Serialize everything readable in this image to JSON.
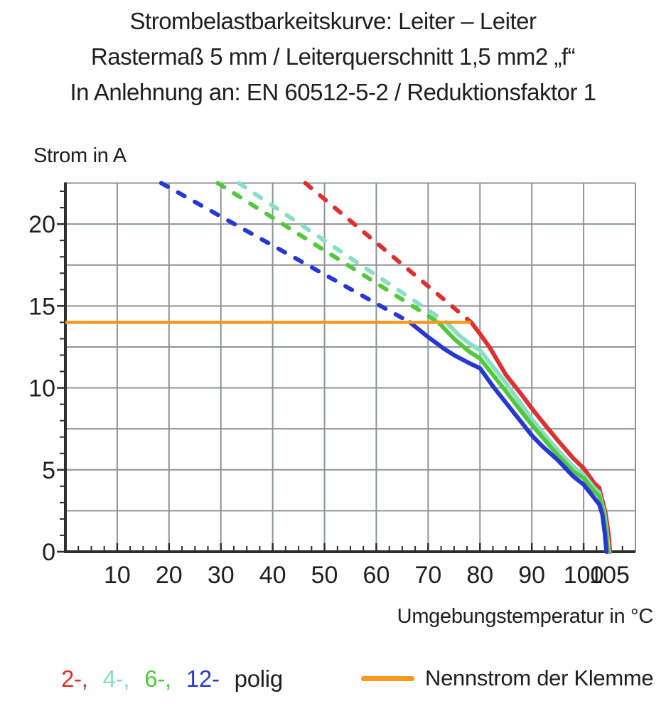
{
  "title_lines": [
    "Strombelastbarkeitskurve: Leiter – Leiter",
    "Rastermaß 5 mm / Leiterquerschnitt 1,5 mm2 „f“",
    "In Anlehnung an: EN 60512-5-2 / Reduktionsfaktor 1"
  ],
  "y_axis_title": "Strom in A",
  "x_axis_title": "Umgebungstemperatur in °C",
  "colors": {
    "red": "#e02f33",
    "teal": "#89dfc5",
    "green": "#52c93c",
    "blue": "#2638d4",
    "orange": "#f8981d",
    "grid": "#8e9496",
    "axis": "#2e2e2e",
    "text": "#1f1f1f"
  },
  "legend": {
    "poles": [
      {
        "label": "2-,",
        "color_key": "red"
      },
      {
        "label": "4-,",
        "color_key": "teal"
      },
      {
        "label": "6-,",
        "color_key": "green"
      },
      {
        "label": "12-",
        "color_key": "blue"
      }
    ],
    "poles_suffix": "polig",
    "nennstrom_label": "Nennstrom der Klemme"
  },
  "chart_data": {
    "type": "line",
    "title": "Strombelastbarkeitskurve: Leiter – Leiter",
    "xlabel": "Umgebungstemperatur in °C",
    "ylabel": "Strom in A",
    "xlim": [
      0,
      110
    ],
    "ylim": [
      0,
      22.5
    ],
    "xticks": [
      10,
      20,
      30,
      40,
      50,
      60,
      70,
      80,
      90,
      100,
      105
    ],
    "yticks": [
      0,
      5,
      10,
      15,
      20
    ],
    "x_gridline_step": 10,
    "y_gridline_step": 2.5,
    "x_minor_tick_step": 2.5,
    "y_minor_tick_step": 1,
    "grid": true,
    "legend_position": "bottom",
    "rated_current": {
      "label": "Nennstrom der Klemme",
      "value": 14,
      "x_start": 0,
      "x_end": 78.3,
      "color_key": "orange"
    },
    "series": [
      {
        "name": "2-polig",
        "color_key": "red",
        "dashed_points": [
          [
            46.3,
            22.5
          ],
          [
            78.3,
            14
          ]
        ],
        "solid_points": [
          [
            78.3,
            14
          ],
          [
            80,
            13.3
          ],
          [
            82,
            12.4
          ],
          [
            85,
            10.8
          ],
          [
            88,
            9.6
          ],
          [
            90,
            8.75
          ],
          [
            92,
            7.95
          ],
          [
            95,
            6.8
          ],
          [
            98,
            5.7
          ],
          [
            100,
            5.1
          ],
          [
            102,
            4.2
          ],
          [
            103,
            3.9
          ],
          [
            104.2,
            2.4
          ],
          [
            104.8,
            1.1
          ],
          [
            105.1,
            0
          ]
        ]
      },
      {
        "name": "4-polig",
        "color_key": "teal",
        "dashed_points": [
          [
            33.5,
            22.5
          ],
          [
            73.5,
            14
          ]
        ],
        "solid_points": [
          [
            73.5,
            14
          ],
          [
            76,
            13.2
          ],
          [
            78,
            12.7
          ],
          [
            80,
            12.3
          ],
          [
            82.5,
            11.3
          ],
          [
            85,
            10.3
          ],
          [
            88,
            9.0
          ],
          [
            90,
            8.1
          ],
          [
            92,
            7.3
          ],
          [
            95,
            6.2
          ],
          [
            98,
            5.2
          ],
          [
            100,
            4.7
          ],
          [
            102,
            3.9
          ],
          [
            103,
            3.6
          ],
          [
            104,
            2.3
          ],
          [
            104.5,
            1.1
          ],
          [
            104.85,
            0
          ]
        ]
      },
      {
        "name": "6-polig",
        "color_key": "green",
        "dashed_points": [
          [
            29.4,
            22.5
          ],
          [
            72,
            14
          ]
        ],
        "solid_points": [
          [
            72,
            14
          ],
          [
            75,
            13.0
          ],
          [
            78,
            12.2
          ],
          [
            80,
            11.8
          ],
          [
            82.5,
            10.8
          ],
          [
            85,
            9.8
          ],
          [
            88,
            8.55
          ],
          [
            90,
            7.75
          ],
          [
            92,
            7.0
          ],
          [
            95,
            5.9
          ],
          [
            98,
            4.9
          ],
          [
            100,
            4.5
          ],
          [
            102,
            3.7
          ],
          [
            103,
            3.4
          ],
          [
            103.9,
            2.2
          ],
          [
            104.4,
            1.0
          ],
          [
            104.65,
            0
          ]
        ]
      },
      {
        "name": "12-polig",
        "color_key": "blue",
        "dashed_points": [
          [
            18.5,
            22.5
          ],
          [
            66.5,
            14
          ]
        ],
        "solid_points": [
          [
            66.5,
            14
          ],
          [
            70,
            13.1
          ],
          [
            73,
            12.4
          ],
          [
            75,
            12.0
          ],
          [
            78,
            11.5
          ],
          [
            80,
            11.2
          ],
          [
            82.5,
            10.1
          ],
          [
            85,
            9.1
          ],
          [
            88,
            7.9
          ],
          [
            90,
            7.1
          ],
          [
            92,
            6.45
          ],
          [
            95,
            5.6
          ],
          [
            98,
            4.6
          ],
          [
            100,
            4.1
          ],
          [
            102,
            3.3
          ],
          [
            103,
            2.9
          ],
          [
            103.6,
            2.3
          ],
          [
            104.1,
            1.1
          ],
          [
            104.4,
            0
          ]
        ]
      }
    ]
  }
}
